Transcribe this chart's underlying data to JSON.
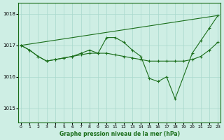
{
  "bg_color": "#ceeee4",
  "grid_color": "#a8d8cc",
  "line_color": "#1a6e1a",
  "title": "Graphe pression niveau de la mer (hPa)",
  "xlim": [
    -0.3,
    23.3
  ],
  "ylim": [
    1014.55,
    1018.35
  ],
  "yticks": [
    1015,
    1016,
    1017,
    1018
  ],
  "xticks": [
    0,
    1,
    2,
    3,
    4,
    5,
    6,
    7,
    8,
    9,
    10,
    11,
    12,
    13,
    14,
    15,
    16,
    17,
    18,
    19,
    20,
    21,
    22,
    23
  ],
  "line1_x": [
    0,
    1,
    2,
    3,
    4,
    5,
    6,
    7,
    8,
    9,
    10,
    11,
    12,
    13,
    14,
    15,
    16,
    17,
    18,
    20,
    21,
    22,
    23
  ],
  "line1_y": [
    1017.0,
    1016.85,
    1016.65,
    1016.5,
    1016.55,
    1016.6,
    1016.65,
    1016.75,
    1016.85,
    1016.75,
    1017.25,
    1017.25,
    1017.1,
    1016.85,
    1016.65,
    1015.95,
    1015.85,
    1016.0,
    1015.3,
    1016.75,
    1017.15,
    1017.55,
    1017.95
  ],
  "line2_x": [
    0,
    1,
    2,
    3,
    4,
    5,
    6,
    7,
    8,
    9,
    10,
    11,
    12,
    13,
    14,
    15,
    16,
    17,
    18,
    19,
    20,
    21,
    22,
    23
  ],
  "line2_y": [
    1017.0,
    1016.85,
    1016.65,
    1016.5,
    1016.55,
    1016.6,
    1016.65,
    1016.7,
    1016.75,
    1016.75,
    1016.75,
    1016.7,
    1016.65,
    1016.6,
    1016.55,
    1016.5,
    1016.5,
    1016.5,
    1016.5,
    1016.5,
    1016.55,
    1016.65,
    1016.85,
    1017.1
  ],
  "line3_x": [
    0,
    23
  ],
  "line3_y": [
    1017.0,
    1017.95
  ]
}
